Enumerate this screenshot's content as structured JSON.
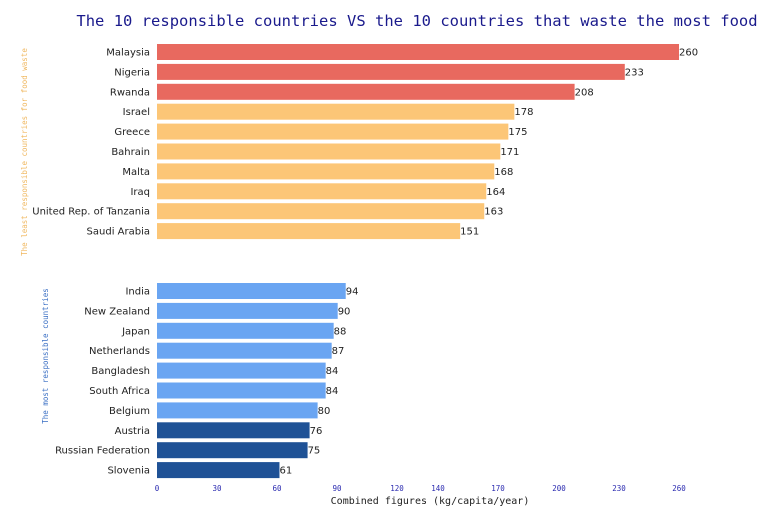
{
  "chart_data": {
    "type": "bar",
    "orientation": "horizontal",
    "title": "The 10 responsible countries VS the 10 countries that waste the most food",
    "xlabel": "Combined figures (kg/capita/year)",
    "x_ticks": [
      "0",
      "30",
      "60",
      "90",
      "120",
      "140",
      "170",
      "200",
      "230",
      "260"
    ],
    "xlim": [
      0,
      260
    ],
    "groups": [
      {
        "label": "The least responsible countries for food waste",
        "label_color": "#f0b860",
        "bars": [
          {
            "category": "Malaysia",
            "value": 260,
            "color": "#e8695f"
          },
          {
            "category": "Nigeria",
            "value": 233,
            "color": "#e8695f"
          },
          {
            "category": "Rwanda",
            "value": 208,
            "color": "#e8695f"
          },
          {
            "category": "Israel",
            "value": 178,
            "color": "#fcc677"
          },
          {
            "category": "Greece",
            "value": 175,
            "color": "#fcc677"
          },
          {
            "category": "Bahrain",
            "value": 171,
            "color": "#fcc677"
          },
          {
            "category": "Malta",
            "value": 168,
            "color": "#fcc677"
          },
          {
            "category": "Iraq",
            "value": 164,
            "color": "#fcc677"
          },
          {
            "category": "United Rep. of Tanzania",
            "value": 163,
            "color": "#fcc677"
          },
          {
            "category": "Saudi Arabia",
            "value": 151,
            "color": "#fcc677"
          }
        ]
      },
      {
        "label": "The most responsible countries",
        "label_color": "#3a6fc4",
        "bars": [
          {
            "category": "India",
            "value": 94,
            "color": "#6aa5f2"
          },
          {
            "category": "New Zealand",
            "value": 90,
            "color": "#6aa5f2"
          },
          {
            "category": "Japan",
            "value": 88,
            "color": "#6aa5f2"
          },
          {
            "category": "Netherlands",
            "value": 87,
            "color": "#6aa5f2"
          },
          {
            "category": "Bangladesh",
            "value": 84,
            "color": "#6aa5f2"
          },
          {
            "category": "South Africa",
            "value": 84,
            "color": "#6aa5f2"
          },
          {
            "category": "Belgium",
            "value": 80,
            "color": "#6aa5f2"
          },
          {
            "category": "Austria",
            "value": 76,
            "color": "#1f5296"
          },
          {
            "category": "Russian Federation",
            "value": 75,
            "color": "#1f5296"
          },
          {
            "category": "Slovenia",
            "value": 61,
            "color": "#1f5296"
          }
        ]
      }
    ],
    "grid": false,
    "legend": "none"
  }
}
